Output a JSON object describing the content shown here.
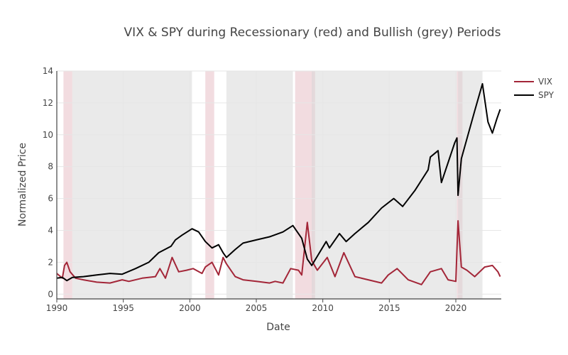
{
  "chart_data": {
    "type": "line",
    "title": "VIX & SPY during Recessionary (red) and Bullish (grey) Periods",
    "xlabel": "Date",
    "ylabel": "Normalized Price",
    "xlim": [
      "1990-01-01",
      "2023-05-31"
    ],
    "ylim": [
      -0.3,
      14
    ],
    "x_ticks": [
      "1990",
      "1995",
      "2000",
      "2005",
      "2010",
      "2015",
      "2020"
    ],
    "y_ticks": [
      0,
      2,
      4,
      6,
      8,
      10,
      12,
      14
    ],
    "grid": true,
    "legend_position": "top-right",
    "shaded_periods": [
      {
        "type": "recession",
        "start": "1990-07-01",
        "end": "1991-03-01"
      },
      {
        "type": "bullish",
        "start": "1991-03-01",
        "end": "2000-03-01"
      },
      {
        "type": "recession",
        "start": "2001-03-01",
        "end": "2001-11-01"
      },
      {
        "type": "bullish",
        "start": "2002-10-01",
        "end": "2007-10-01"
      },
      {
        "type": "recession",
        "start": "2007-12-01",
        "end": "2009-06-01"
      },
      {
        "type": "bullish",
        "start": "2009-03-01",
        "end": "2020-02-01"
      },
      {
        "type": "recession",
        "start": "2020-02-01",
        "end": "2020-07-01"
      },
      {
        "type": "bullish",
        "start": "2020-03-01",
        "end": "2022-01-01"
      }
    ],
    "series": [
      {
        "name": "VIX",
        "color": "#a32638",
        "x": [
          "1990-01",
          "1990-06",
          "1990-08",
          "1990-10",
          "1991-01",
          "1991-06",
          "1992-01",
          "1993-01",
          "1994-01",
          "1994-12",
          "1995-06",
          "1996-06",
          "1997-06",
          "1997-10",
          "1998-03",
          "1998-09",
          "1999-03",
          "1999-10",
          "2000-04",
          "2000-12",
          "2001-03",
          "2001-09",
          "2002-03",
          "2002-07",
          "2002-10",
          "2003-06",
          "2004-01",
          "2005-01",
          "2006-01",
          "2006-06",
          "2007-01",
          "2007-08",
          "2008-03",
          "2008-06",
          "2008-11",
          "2009-03",
          "2009-08",
          "2010-05",
          "2010-12",
          "2011-08",
          "2012-06",
          "2013-06",
          "2014-06",
          "2014-12",
          "2015-08",
          "2016-06",
          "2017-06",
          "2018-02",
          "2018-12",
          "2019-06",
          "2020-01",
          "2020-03",
          "2020-06",
          "2020-11",
          "2021-06",
          "2022-03",
          "2022-10",
          "2023-03",
          "2023-05"
        ],
        "values": [
          1.3,
          1.0,
          1.8,
          2.0,
          1.4,
          1.0,
          0.9,
          0.75,
          0.7,
          0.9,
          0.8,
          1.0,
          1.1,
          1.6,
          1.0,
          2.3,
          1.4,
          1.5,
          1.6,
          1.3,
          1.7,
          2.0,
          1.2,
          2.3,
          1.9,
          1.1,
          0.9,
          0.8,
          0.7,
          0.8,
          0.7,
          1.6,
          1.5,
          1.2,
          4.5,
          2.1,
          1.5,
          2.3,
          1.1,
          2.6,
          1.1,
          0.9,
          0.7,
          1.2,
          1.6,
          0.9,
          0.6,
          1.4,
          1.6,
          0.9,
          0.8,
          4.6,
          1.7,
          1.5,
          1.1,
          1.7,
          1.8,
          1.4,
          1.1
        ]
      },
      {
        "name": "SPY",
        "color": "#000000",
        "x": [
          "1990-01",
          "1990-06",
          "1990-10",
          "1991-03",
          "1992-01",
          "1993-01",
          "1994-01",
          "1994-12",
          "1995-12",
          "1996-12",
          "1997-09",
          "1998-08",
          "1998-12",
          "1999-06",
          "2000-03",
          "2000-09",
          "2001-03",
          "2001-09",
          "2002-03",
          "2002-07",
          "2002-10",
          "2003-06",
          "2004-01",
          "2005-01",
          "2006-01",
          "2007-01",
          "2007-10",
          "2008-06",
          "2008-11",
          "2009-03",
          "2010-04",
          "2010-07",
          "2011-04",
          "2011-10",
          "2012-06",
          "2013-06",
          "2014-06",
          "2015-05",
          "2016-01",
          "2016-12",
          "2017-12",
          "2018-02",
          "2018-09",
          "2018-12",
          "2019-12",
          "2020-02",
          "2020-03",
          "2020-06",
          "2021-06",
          "2022-01",
          "2022-06",
          "2022-10",
          "2023-02",
          "2023-05"
        ],
        "values": [
          1.0,
          1.05,
          0.85,
          1.05,
          1.1,
          1.2,
          1.3,
          1.25,
          1.6,
          2.0,
          2.6,
          3.0,
          3.4,
          3.7,
          4.1,
          3.9,
          3.3,
          2.9,
          3.1,
          2.6,
          2.3,
          2.8,
          3.2,
          3.4,
          3.6,
          3.9,
          4.3,
          3.5,
          2.2,
          1.8,
          3.3,
          2.9,
          3.8,
          3.3,
          3.8,
          4.5,
          5.4,
          6.0,
          5.5,
          6.5,
          7.8,
          8.6,
          9.0,
          7.0,
          9.5,
          9.8,
          6.2,
          8.5,
          11.5,
          13.2,
          10.8,
          10.1,
          11.0,
          11.6
        ]
      }
    ]
  }
}
